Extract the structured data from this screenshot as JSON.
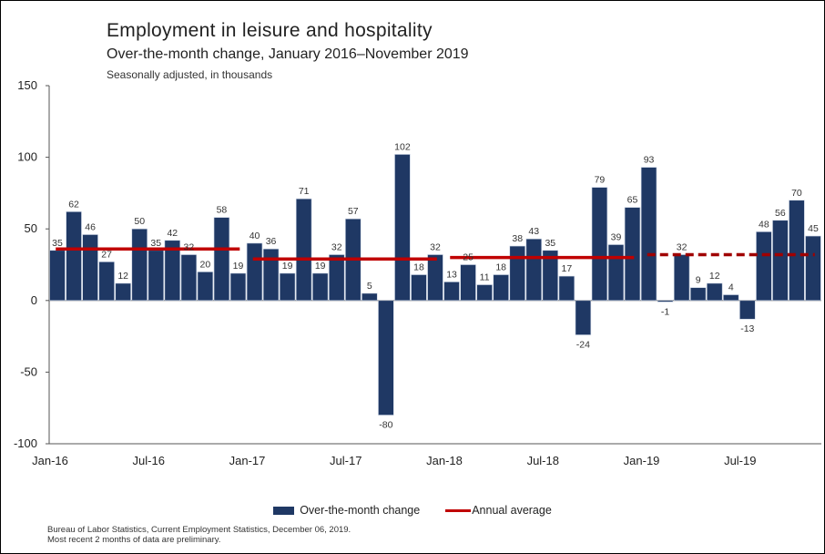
{
  "title": "Employment in leisure and hospitality",
  "subtitle": "Over-the-month change, January 2016–November 2019",
  "unit_note": "Seasonally adjusted, in thousands",
  "source_line1": "Bureau of Labor Statistics, Current Employment Statistics, December 06, 2019.",
  "source_line2": "Most recent 2 months of data are preliminary.",
  "legend": {
    "bar_label": "Over-the-month change",
    "line_label": "Annual average"
  },
  "colors": {
    "bar": "#1f3864",
    "bar_edge": "#c9d3e3",
    "avg_line": "#c00000",
    "prelim_line": "#a00000"
  },
  "chart_data": {
    "type": "bar",
    "ylim": [
      -100,
      150
    ],
    "yticks": [
      -100,
      -50,
      0,
      50,
      100,
      150
    ],
    "x_tick_labels": [
      {
        "index": 0,
        "label": "Jan-16"
      },
      {
        "index": 6,
        "label": "Jul-16"
      },
      {
        "index": 12,
        "label": "Jan-17"
      },
      {
        "index": 18,
        "label": "Jul-17"
      },
      {
        "index": 24,
        "label": "Jan-18"
      },
      {
        "index": 30,
        "label": "Jul-18"
      },
      {
        "index": 36,
        "label": "Jan-19"
      },
      {
        "index": 42,
        "label": "Jul-19"
      }
    ],
    "grid": false,
    "legend_position": "bottom",
    "series": [
      {
        "name": "Over-the-month change",
        "values": [
          35,
          62,
          46,
          27,
          12,
          50,
          35,
          42,
          32,
          20,
          58,
          19,
          40,
          36,
          19,
          71,
          19,
          32,
          57,
          5,
          -80,
          102,
          18,
          32,
          13,
          25,
          11,
          18,
          38,
          43,
          35,
          17,
          -24,
          79,
          39,
          65,
          93,
          -1,
          32,
          9,
          12,
          4,
          -13,
          48,
          56,
          70,
          45
        ]
      }
    ],
    "annual_averages": [
      {
        "year": "2016",
        "start": 0,
        "end": 11,
        "value": 36,
        "style": "solid"
      },
      {
        "year": "2017",
        "start": 12,
        "end": 23,
        "value": 29,
        "style": "solid"
      },
      {
        "year": "2018",
        "start": 24,
        "end": 35,
        "value": 30,
        "style": "solid"
      },
      {
        "year": "2019",
        "start": 36,
        "end": 46,
        "value": 32,
        "style": "dashed"
      }
    ]
  }
}
